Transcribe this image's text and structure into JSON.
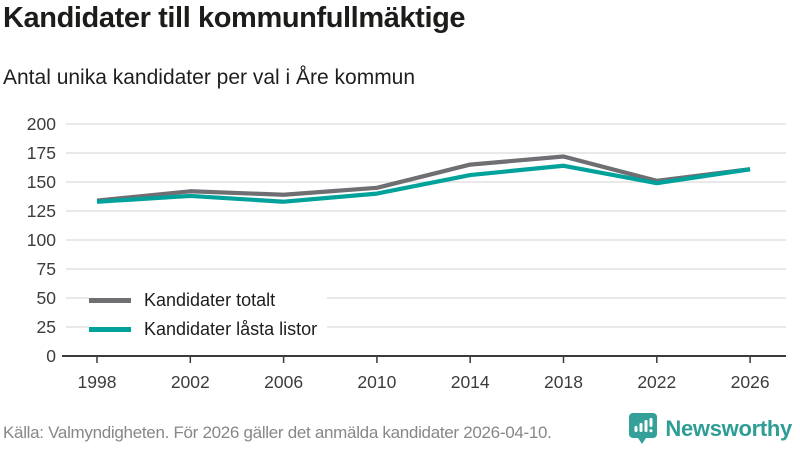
{
  "header": {
    "title": "Kandidater till kommunfullmäktige",
    "subtitle": "Antal unika kandidater per val i Åre kommun"
  },
  "chart_data": {
    "type": "line",
    "x": [
      1998,
      2002,
      2006,
      2010,
      2014,
      2018,
      2022,
      2026
    ],
    "series": [
      {
        "name": "Kandidater totalt",
        "color": "#6e6e73",
        "values": [
          134,
          142,
          139,
          145,
          165,
          172,
          151,
          161
        ]
      },
      {
        "name": "Kandidater låsta listor",
        "color": "#00a29b",
        "values": [
          133,
          138,
          133,
          140,
          156,
          164,
          149,
          161
        ]
      }
    ],
    "ylim": [
      0,
      200
    ],
    "ystep": 25,
    "grid": "horizontal",
    "legend_position": "inside-bottom-left",
    "axis_color": "#3a3a3a",
    "grid_color": "#e2e2e2"
  },
  "footer": {
    "source": "Källa: Valmyndigheten. För 2026 gäller det anmälda kandidater 2026-04-10.",
    "brand": "Newsworthy",
    "brand_color": "#2e9d95"
  }
}
